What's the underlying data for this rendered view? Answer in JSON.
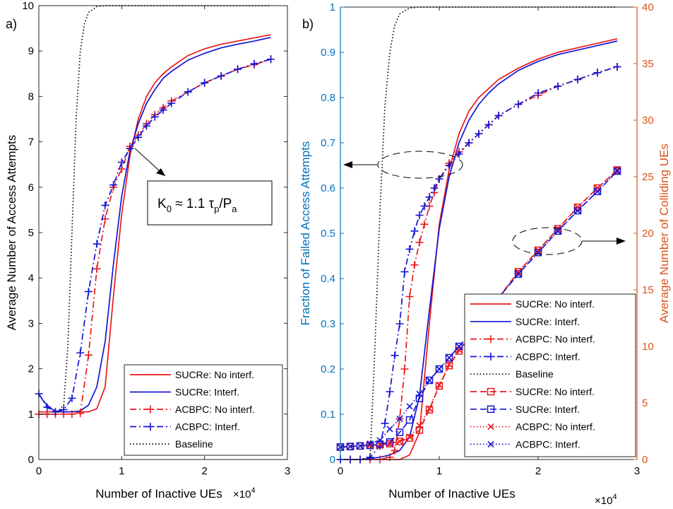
{
  "figure": {
    "panels": {
      "a": {
        "label": "a)",
        "xlabel": "Number of Inactive UEs",
        "xexp": "×10",
        "xexp_pow": "4",
        "ylabel": "Average Number of Access Attempts",
        "annotation": {
          "pre": "K",
          "sub0": "0",
          "mid": " ≈ 1.1 τ",
          "subp": "p",
          "slash": "/P",
          "suba": "a"
        }
      },
      "b": {
        "label": "b)",
        "xlabel": "Number of Inactive UEs",
        "xexp": "×10",
        "xexp_pow": "4",
        "ylabel_left": "Fraction of Failed Access Attempts",
        "ylabel_right": "Average Number of Colliding UEs"
      }
    }
  },
  "colors": {
    "red": "#e8191c",
    "blue": "#1414d4",
    "black": "#000000",
    "left_axis": "#0072bd",
    "right_axis": "#d95319"
  },
  "chart_data": [
    {
      "type": "line",
      "panel": "a",
      "xlabel": "Number of Inactive UEs",
      "ylabel": "Average Number of Access Attempts",
      "x_scale_note": "×10^4",
      "xlim": [
        0,
        3
      ],
      "ylim": [
        0,
        10
      ],
      "xticks": [
        "0",
        "1",
        "2",
        "3"
      ],
      "yticks": [
        "0",
        "1",
        "2",
        "3",
        "4",
        "5",
        "6",
        "7",
        "8",
        "9",
        "10"
      ],
      "legend_position": "bottom-right",
      "series": [
        {
          "name": "SUCRe: No interf.",
          "color": "#e8191c",
          "dash": "solid",
          "marker": "none",
          "x": [
            0,
            0.2,
            0.4,
            0.6,
            0.7,
            0.8,
            0.9,
            1.0,
            1.1,
            1.2,
            1.3,
            1.4,
            1.5,
            1.6,
            1.8,
            2.0,
            2.2,
            2.4,
            2.6,
            2.8
          ],
          "y": [
            1.05,
            1.05,
            1.05,
            1.05,
            1.12,
            1.6,
            3.6,
            5.4,
            6.7,
            7.5,
            8.0,
            8.3,
            8.5,
            8.65,
            8.9,
            9.05,
            9.15,
            9.22,
            9.29,
            9.36
          ]
        },
        {
          "name": "SUCRe: Interf.",
          "color": "#1414d4",
          "dash": "solid",
          "marker": "none",
          "x": [
            0,
            0.05,
            0.1,
            0.15,
            0.2,
            0.3,
            0.4,
            0.5,
            0.6,
            0.7,
            0.8,
            0.9,
            1.0,
            1.1,
            1.2,
            1.3,
            1.4,
            1.5,
            1.6,
            1.8,
            2.0,
            2.2,
            2.4,
            2.6,
            2.8
          ],
          "y": [
            1.45,
            1.3,
            1.2,
            1.12,
            1.07,
            1.05,
            1.05,
            1.07,
            1.2,
            1.6,
            2.6,
            4.3,
            5.8,
            6.8,
            7.4,
            7.85,
            8.15,
            8.4,
            8.55,
            8.8,
            8.95,
            9.07,
            9.15,
            9.22,
            9.3
          ]
        },
        {
          "name": "ACBPC: No interf.",
          "color": "#e8191c",
          "dash": "dashdot",
          "marker": "plus",
          "x": [
            0,
            0.1,
            0.2,
            0.3,
            0.4,
            0.5,
            0.6,
            0.7,
            0.8,
            0.9,
            1.0,
            1.1,
            1.2,
            1.3,
            1.4,
            1.5,
            1.6,
            1.8,
            2.0,
            2.2,
            2.4,
            2.6,
            2.8
          ],
          "y": [
            1.0,
            1.0,
            1.0,
            1.0,
            1.0,
            1.02,
            2.3,
            4.2,
            5.3,
            6.0,
            6.4,
            6.9,
            7.15,
            7.4,
            7.6,
            7.75,
            7.9,
            8.1,
            8.3,
            8.45,
            8.6,
            8.7,
            8.82
          ]
        },
        {
          "name": "ACBPC: Interf.",
          "color": "#1414d4",
          "dash": "dashdot",
          "marker": "plus",
          "x": [
            0,
            0.1,
            0.2,
            0.3,
            0.4,
            0.5,
            0.6,
            0.7,
            0.8,
            0.9,
            1.0,
            1.1,
            1.2,
            1.3,
            1.4,
            1.5,
            1.6,
            1.8,
            2.0,
            2.2,
            2.4,
            2.6,
            2.8
          ],
          "y": [
            1.45,
            1.15,
            1.05,
            1.1,
            1.35,
            2.35,
            3.7,
            4.75,
            5.6,
            6.05,
            6.55,
            6.85,
            7.1,
            7.35,
            7.55,
            7.7,
            7.85,
            8.1,
            8.3,
            8.45,
            8.6,
            8.72,
            8.82
          ]
        },
        {
          "name": "Baseline",
          "color": "#000000",
          "dash": "dotted",
          "marker": "none",
          "x": [
            0,
            0.2,
            0.3,
            0.35,
            0.4,
            0.45,
            0.5,
            0.55,
            0.6,
            0.7,
            0.8,
            2.8
          ],
          "y": [
            1.0,
            1.0,
            1.2,
            2.5,
            5.0,
            7.5,
            9.0,
            9.6,
            9.85,
            9.98,
            10.0,
            10.0
          ]
        }
      ]
    },
    {
      "type": "line",
      "panel": "b",
      "xlabel": "Number of Inactive UEs",
      "ylabel_left": "Fraction of Failed Access Attempts",
      "ylabel_right": "Average Number of Colliding UEs",
      "x_scale_note": "×10^4",
      "xlim": [
        0,
        3
      ],
      "ylim_left": [
        0,
        1
      ],
      "ylim_right": [
        0,
        40
      ],
      "xticks": [
        "0",
        "1",
        "2",
        "3"
      ],
      "yticks_left": [
        "0",
        "0.1",
        "0.2",
        "0.3",
        "0.4",
        "0.5",
        "0.6",
        "0.7",
        "0.8",
        "0.9",
        "1"
      ],
      "yticks_right": [
        "0",
        "5",
        "10",
        "15",
        "20",
        "25",
        "30",
        "35",
        "40"
      ],
      "legend_position": "bottom-right",
      "series": [
        {
          "name": "SUCRe: No interf.",
          "axis": "left",
          "color": "#e8191c",
          "dash": "solid",
          "marker": "none",
          "x": [
            0,
            0.2,
            0.4,
            0.6,
            0.7,
            0.8,
            0.9,
            1.0,
            1.1,
            1.2,
            1.3,
            1.4,
            1.5,
            1.6,
            1.8,
            2.0,
            2.2,
            2.4,
            2.6,
            2.8
          ],
          "y": [
            0,
            0,
            0,
            0,
            0.01,
            0.06,
            0.3,
            0.52,
            0.64,
            0.72,
            0.77,
            0.8,
            0.82,
            0.84,
            0.865,
            0.885,
            0.9,
            0.91,
            0.92,
            0.93
          ]
        },
        {
          "name": "SUCRe: Interf.",
          "axis": "left",
          "color": "#1414d4",
          "dash": "solid",
          "marker": "none",
          "x": [
            0,
            0.2,
            0.4,
            0.5,
            0.6,
            0.7,
            0.8,
            0.9,
            1.0,
            1.1,
            1.2,
            1.3,
            1.4,
            1.5,
            1.6,
            1.8,
            2.0,
            2.2,
            2.4,
            2.6,
            2.8
          ],
          "y": [
            0,
            0,
            0.005,
            0.01,
            0.02,
            0.05,
            0.14,
            0.33,
            0.51,
            0.625,
            0.7,
            0.75,
            0.785,
            0.81,
            0.83,
            0.86,
            0.88,
            0.895,
            0.905,
            0.915,
            0.925
          ]
        },
        {
          "name": "ACBPC: No interf.",
          "axis": "left",
          "color": "#e8191c",
          "dash": "dashdot",
          "marker": "plus",
          "x": [
            0,
            0.1,
            0.2,
            0.3,
            0.4,
            0.5,
            0.55,
            0.6,
            0.65,
            0.7,
            0.75,
            0.8,
            0.85,
            0.9,
            0.95,
            1.0,
            1.1,
            1.2,
            1.3,
            1.4,
            1.5,
            1.6,
            1.8,
            2.0,
            2.2,
            2.4,
            2.6,
            2.8
          ],
          "y": [
            0,
            0,
            0,
            0,
            0,
            0.005,
            0.02,
            0.09,
            0.2,
            0.36,
            0.43,
            0.48,
            0.52,
            0.56,
            0.59,
            0.62,
            0.655,
            0.68,
            0.7,
            0.72,
            0.74,
            0.76,
            0.785,
            0.805,
            0.825,
            0.84,
            0.855,
            0.868
          ]
        },
        {
          "name": "ACBPC: Interf.",
          "axis": "left",
          "color": "#1414d4",
          "dash": "dashdot",
          "marker": "plus",
          "x": [
            0,
            0.1,
            0.2,
            0.3,
            0.4,
            0.45,
            0.5,
            0.55,
            0.6,
            0.65,
            0.7,
            0.75,
            0.8,
            0.85,
            0.9,
            0.95,
            1.0,
            1.1,
            1.2,
            1.3,
            1.4,
            1.5,
            1.6,
            1.8,
            2.0,
            2.2,
            2.4,
            2.6,
            2.8
          ],
          "y": [
            0,
            0,
            0,
            0.005,
            0.03,
            0.08,
            0.15,
            0.23,
            0.3,
            0.415,
            0.465,
            0.505,
            0.54,
            0.56,
            0.58,
            0.6,
            0.62,
            0.65,
            0.675,
            0.7,
            0.72,
            0.74,
            0.76,
            0.785,
            0.81,
            0.825,
            0.84,
            0.855,
            0.868
          ]
        },
        {
          "name": "Baseline",
          "axis": "left",
          "color": "#000000",
          "dash": "dotted",
          "marker": "none",
          "x": [
            0,
            0.2,
            0.3,
            0.35,
            0.4,
            0.45,
            0.5,
            0.55,
            0.6,
            0.7,
            0.8,
            2.8
          ],
          "y": [
            0,
            0,
            0.0,
            0.25,
            0.55,
            0.78,
            0.9,
            0.96,
            0.985,
            0.998,
            1.0,
            1.0
          ]
        },
        {
          "name": "SUCRe: No interf.",
          "axis": "right",
          "color": "#e8191c",
          "dash": "dashed",
          "marker": "square",
          "x": [
            0,
            0.1,
            0.2,
            0.3,
            0.4,
            0.5,
            0.6,
            0.7,
            0.8,
            0.9,
            1.0,
            1.1,
            1.2,
            1.3,
            1.4,
            1.5,
            1.6,
            1.8,
            2.0,
            2.2,
            2.4,
            2.6,
            2.8
          ],
          "y": [
            1.1,
            1.15,
            1.2,
            1.25,
            1.3,
            1.4,
            1.6,
            1.9,
            2.6,
            4.4,
            6.5,
            8.3,
            9.6,
            10.7,
            11.8,
            13.0,
            14.3,
            16.6,
            18.5,
            20.4,
            22.3,
            24.0,
            25.6
          ]
        },
        {
          "name": "SUCRe: Interf.",
          "axis": "right",
          "color": "#1414d4",
          "dash": "dashed",
          "marker": "square",
          "x": [
            0,
            0.1,
            0.2,
            0.3,
            0.4,
            0.5,
            0.6,
            0.7,
            0.8,
            0.9,
            1.0,
            1.1,
            1.2,
            1.3,
            1.4,
            1.5,
            1.6,
            1.8,
            2.0,
            2.2,
            2.4,
            2.6,
            2.8
          ],
          "y": [
            1.1,
            1.15,
            1.2,
            1.25,
            1.35,
            1.55,
            2.4,
            3.5,
            5.4,
            7.0,
            8.0,
            9.0,
            10.0,
            11.0,
            12.0,
            13.1,
            14.3,
            16.4,
            18.3,
            20.2,
            22.0,
            23.7,
            25.5
          ]
        },
        {
          "name": "ACBPC: No interf.",
          "axis": "right",
          "color": "#e8191c",
          "dash": "dotted",
          "marker": "x",
          "x": [
            0,
            0.1,
            0.2,
            0.3,
            0.4,
            0.5,
            0.6,
            0.7,
            0.8,
            0.9,
            1.0,
            1.1,
            1.2,
            1.3,
            1.4,
            1.5,
            1.6,
            1.8,
            2.0,
            2.2,
            2.4,
            2.6,
            2.8
          ],
          "y": [
            1.1,
            1.15,
            1.2,
            1.25,
            1.3,
            1.4,
            1.6,
            2.0,
            3.0,
            4.5,
            6.6,
            8.4,
            9.7,
            10.8,
            11.9,
            13.0,
            14.3,
            16.6,
            18.5,
            20.4,
            22.3,
            24.0,
            25.6
          ]
        },
        {
          "name": "ACBPC: Interf.",
          "axis": "right",
          "color": "#1414d4",
          "dash": "dotted",
          "marker": "x",
          "x": [
            0,
            0.1,
            0.2,
            0.3,
            0.4,
            0.5,
            0.6,
            0.7,
            0.8,
            0.9,
            1.0,
            1.1,
            1.2,
            1.3,
            1.4,
            1.5,
            1.6,
            1.8,
            2.0,
            2.2,
            2.4,
            2.6,
            2.8
          ],
          "y": [
            1.1,
            1.15,
            1.2,
            1.4,
            1.7,
            2.7,
            3.6,
            4.7,
            5.8,
            7.0,
            8.0,
            9.0,
            10.0,
            11.0,
            12.0,
            13.1,
            14.3,
            16.4,
            18.3,
            20.2,
            22.0,
            23.7,
            25.5
          ]
        }
      ]
    }
  ]
}
